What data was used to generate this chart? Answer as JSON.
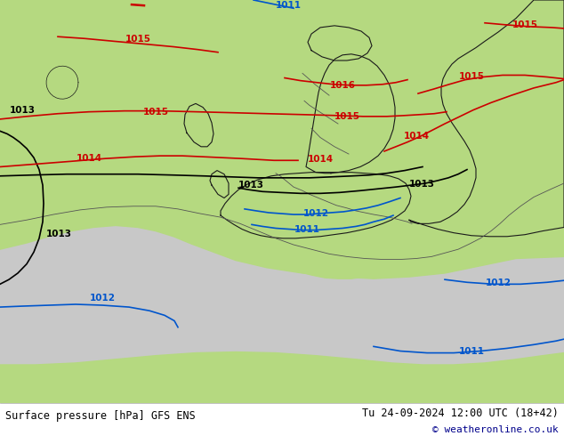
{
  "title_left": "Surface pressure [hPa] GFS ENS",
  "title_right": "Tu 24-09-2024 12:00 UTC (18+42)",
  "copyright": "© weatheronline.co.uk",
  "land_color": "#b5d980",
  "sea_color": "#c8c8c8",
  "border_color": "#1a1a1a",
  "internal_border_color": "#555555",
  "footer_bg": "#ffffff",
  "footer_text_color": "#000000",
  "copyright_color": "#00008b",
  "isobar_blue_color": "#0055cc",
  "isobar_black_color": "#000000",
  "isobar_red_color": "#cc0000",
  "fig_width": 6.34,
  "fig_height": 4.9
}
